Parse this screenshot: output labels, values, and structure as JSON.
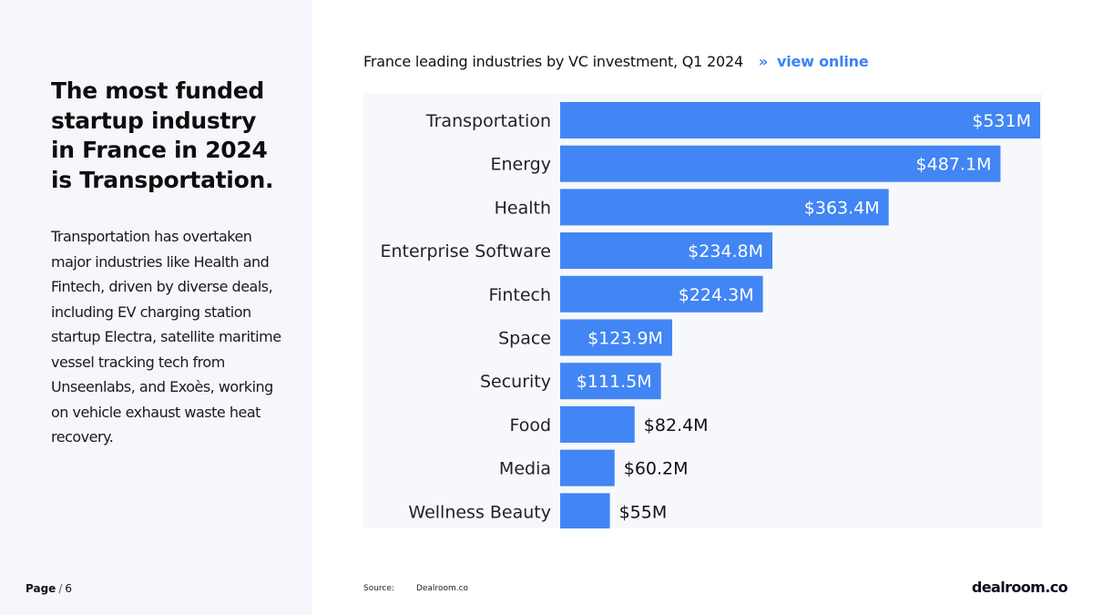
{
  "headline": "The most funded startup industry in France in 2024 is Transportation.",
  "body": "Transportation has overtaken major industries like Health and Fintech, driven by diverse deals, including EV charging station startup Electra, satellite maritime vessel tracking tech from Unseenlabs, and Exoès, working on vehicle exhaust waste heat recovery.",
  "page": {
    "label": "Page",
    "separator": "/",
    "number": "6"
  },
  "chart_header": {
    "title": "France leading industries by VC investment, Q1 2024",
    "link_arrow": "»",
    "link_text": "view online"
  },
  "source": {
    "label": "Source:",
    "value": "Dealroom.co"
  },
  "brand": "dealroom.co",
  "colors": {
    "bar": "#4285f4",
    "panel": "#f5f7fc",
    "link": "#3b82f6"
  },
  "chart_data": {
    "type": "bar",
    "orientation": "horizontal",
    "title": "France leading industries by VC investment, Q1 2024",
    "unit": "$M",
    "categories": [
      "Transportation",
      "Energy",
      "Health",
      "Enterprise Software",
      "Fintech",
      "Space",
      "Security",
      "Food",
      "Media",
      "Wellness Beauty"
    ],
    "values": [
      531,
      487.1,
      363.4,
      234.8,
      224.3,
      123.9,
      111.5,
      82.4,
      60.2,
      55
    ],
    "labels": [
      "$531M",
      "$487.1M",
      "$363.4M",
      "$234.8M",
      "$224.3M",
      "$123.9M",
      "$111.5M",
      "$82.4M",
      "$60.2M",
      "$55M"
    ],
    "xlim": [
      0,
      531
    ],
    "xlabel": "",
    "ylabel": "",
    "grid": false,
    "legend": "none"
  }
}
